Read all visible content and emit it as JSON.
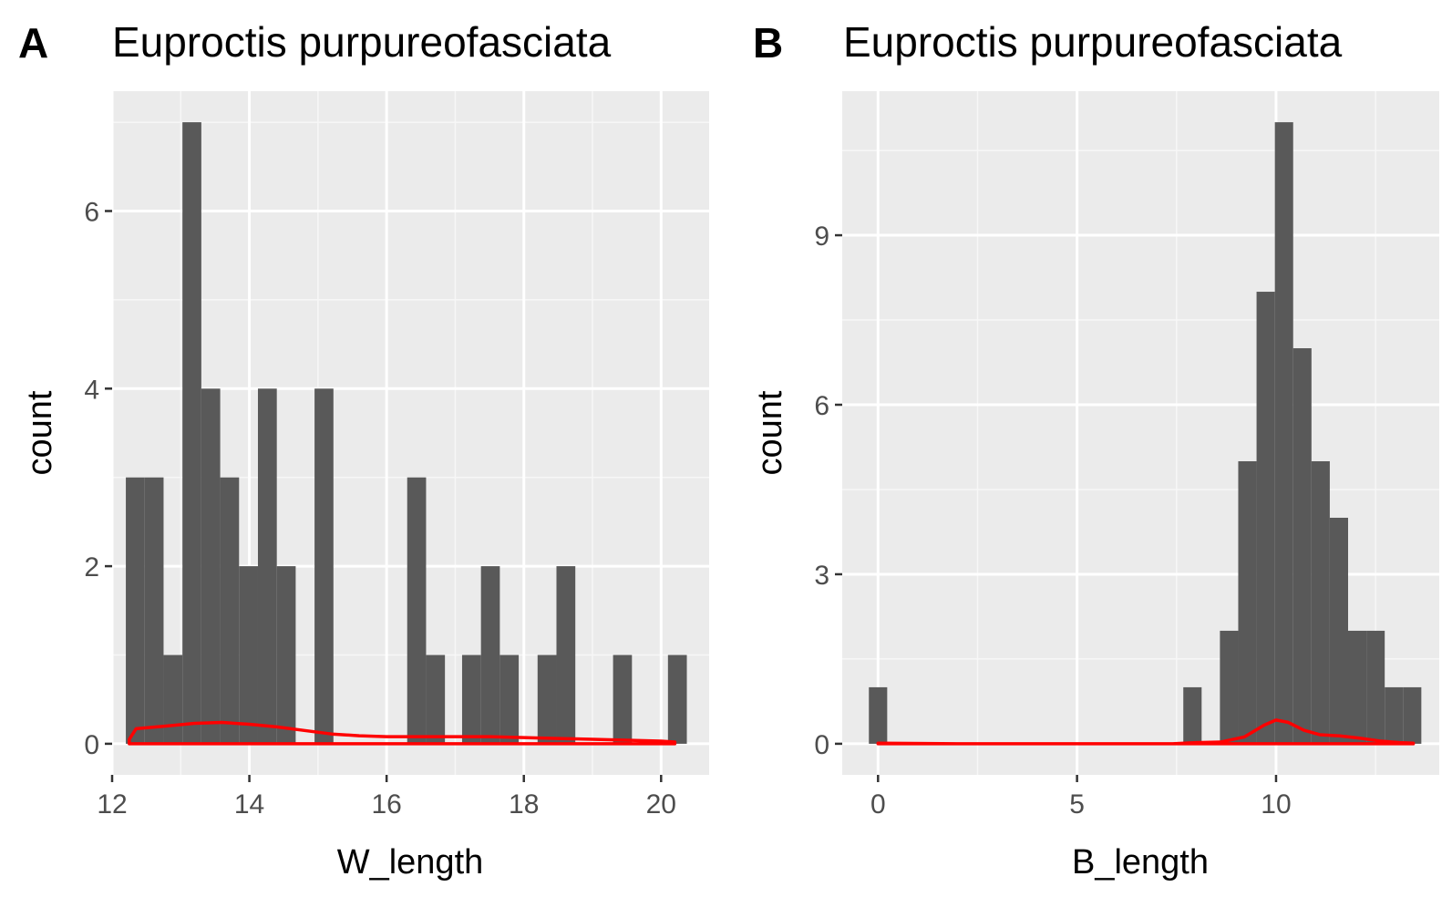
{
  "chart_data": [
    {
      "type": "bar",
      "panel_label": "A",
      "title": "Euproctis purpureofasciata",
      "xlabel": "W_length",
      "ylabel": "count",
      "xlim": [
        12.0,
        20.7
      ],
      "ylim": [
        -0.35,
        7.35
      ],
      "xticks": [
        12,
        14,
        16,
        18,
        20
      ],
      "yticks": [
        0,
        2,
        4,
        6
      ],
      "xtick_labels": [
        "12",
        "14",
        "16",
        "18",
        "20"
      ],
      "ytick_labels": [
        "0",
        "2",
        "4",
        "6"
      ],
      "grid": true,
      "bar_color": "#595959",
      "bins": [
        {
          "x0": 12.2,
          "x1": 12.475,
          "count": 3
        },
        {
          "x0": 12.475,
          "x1": 12.75,
          "count": 3
        },
        {
          "x0": 12.75,
          "x1": 13.025,
          "count": 1
        },
        {
          "x0": 13.025,
          "x1": 13.3,
          "count": 7
        },
        {
          "x0": 13.3,
          "x1": 13.575,
          "count": 4
        },
        {
          "x0": 13.575,
          "x1": 13.85,
          "count": 3
        },
        {
          "x0": 13.85,
          "x1": 14.125,
          "count": 2
        },
        {
          "x0": 14.125,
          "x1": 14.4,
          "count": 4
        },
        {
          "x0": 14.4,
          "x1": 14.675,
          "count": 2
        },
        {
          "x0": 14.95,
          "x1": 15.225,
          "count": 4
        },
        {
          "x0": 16.3,
          "x1": 16.575,
          "count": 3
        },
        {
          "x0": 16.575,
          "x1": 16.85,
          "count": 1
        },
        {
          "x0": 17.1,
          "x1": 17.375,
          "count": 1
        },
        {
          "x0": 17.375,
          "x1": 17.65,
          "count": 2
        },
        {
          "x0": 17.65,
          "x1": 17.925,
          "count": 1
        },
        {
          "x0": 18.2,
          "x1": 18.475,
          "count": 1
        },
        {
          "x0": 18.475,
          "x1": 18.75,
          "count": 2
        },
        {
          "x0": 19.3,
          "x1": 19.575,
          "count": 1
        },
        {
          "x0": 20.1,
          "x1": 20.375,
          "count": 1
        }
      ],
      "density_color": "#ff0000",
      "density": [
        {
          "x": 12.25,
          "y": 0.05
        },
        {
          "x": 12.35,
          "y": 0.17
        },
        {
          "x": 12.8,
          "y": 0.2
        },
        {
          "x": 13.2,
          "y": 0.23
        },
        {
          "x": 13.6,
          "y": 0.24
        },
        {
          "x": 14.0,
          "y": 0.22
        },
        {
          "x": 14.4,
          "y": 0.19
        },
        {
          "x": 14.8,
          "y": 0.15
        },
        {
          "x": 15.2,
          "y": 0.11
        },
        {
          "x": 15.6,
          "y": 0.09
        },
        {
          "x": 16.0,
          "y": 0.08
        },
        {
          "x": 16.5,
          "y": 0.08
        },
        {
          "x": 17.0,
          "y": 0.08
        },
        {
          "x": 17.5,
          "y": 0.08
        },
        {
          "x": 18.0,
          "y": 0.07
        },
        {
          "x": 18.5,
          "y": 0.06
        },
        {
          "x": 19.0,
          "y": 0.05
        },
        {
          "x": 19.5,
          "y": 0.04
        },
        {
          "x": 20.0,
          "y": 0.03
        },
        {
          "x": 20.2,
          "y": 0.02
        }
      ]
    },
    {
      "type": "bar",
      "panel_label": "B",
      "title": "Euproctis purpureofasciata",
      "xlabel": "B_length",
      "ylabel": "count",
      "xlim": [
        -0.9,
        14.1
      ],
      "ylim": [
        -0.55,
        11.55
      ],
      "xticks": [
        0,
        5,
        10
      ],
      "yticks": [
        0,
        3,
        6,
        9
      ],
      "xtick_labels": [
        "0",
        "5",
        "10"
      ],
      "ytick_labels": [
        "0",
        "3",
        "6",
        "9"
      ],
      "grid": true,
      "bar_color": "#595959",
      "bins": [
        {
          "x0": -0.23,
          "x1": 0.23,
          "count": 1
        },
        {
          "x0": 7.67,
          "x1": 8.13,
          "count": 1
        },
        {
          "x0": 8.59,
          "x1": 9.05,
          "count": 2
        },
        {
          "x0": 9.05,
          "x1": 9.51,
          "count": 5
        },
        {
          "x0": 9.51,
          "x1": 9.97,
          "count": 8
        },
        {
          "x0": 9.97,
          "x1": 10.43,
          "count": 11
        },
        {
          "x0": 10.43,
          "x1": 10.89,
          "count": 7
        },
        {
          "x0": 10.89,
          "x1": 11.35,
          "count": 5
        },
        {
          "x0": 11.35,
          "x1": 11.81,
          "count": 4
        },
        {
          "x0": 11.81,
          "x1": 12.27,
          "count": 2
        },
        {
          "x0": 12.27,
          "x1": 12.73,
          "count": 2
        },
        {
          "x0": 12.73,
          "x1": 13.19,
          "count": 1
        },
        {
          "x0": 13.19,
          "x1": 13.65,
          "count": 1
        }
      ],
      "density_color": "#ff0000",
      "density": [
        {
          "x": 0.0,
          "y": 0.01
        },
        {
          "x": 2.0,
          "y": 0.0
        },
        {
          "x": 4.0,
          "y": 0.0
        },
        {
          "x": 6.0,
          "y": 0.0
        },
        {
          "x": 7.4,
          "y": 0.0
        },
        {
          "x": 8.0,
          "y": 0.02
        },
        {
          "x": 8.6,
          "y": 0.03
        },
        {
          "x": 9.2,
          "y": 0.12
        },
        {
          "x": 9.7,
          "y": 0.33
        },
        {
          "x": 10.0,
          "y": 0.42
        },
        {
          "x": 10.3,
          "y": 0.38
        },
        {
          "x": 10.7,
          "y": 0.24
        },
        {
          "x": 11.1,
          "y": 0.16
        },
        {
          "x": 11.6,
          "y": 0.14
        },
        {
          "x": 12.1,
          "y": 0.1
        },
        {
          "x": 12.6,
          "y": 0.05
        },
        {
          "x": 13.1,
          "y": 0.02
        },
        {
          "x": 13.45,
          "y": 0.01
        }
      ]
    }
  ]
}
